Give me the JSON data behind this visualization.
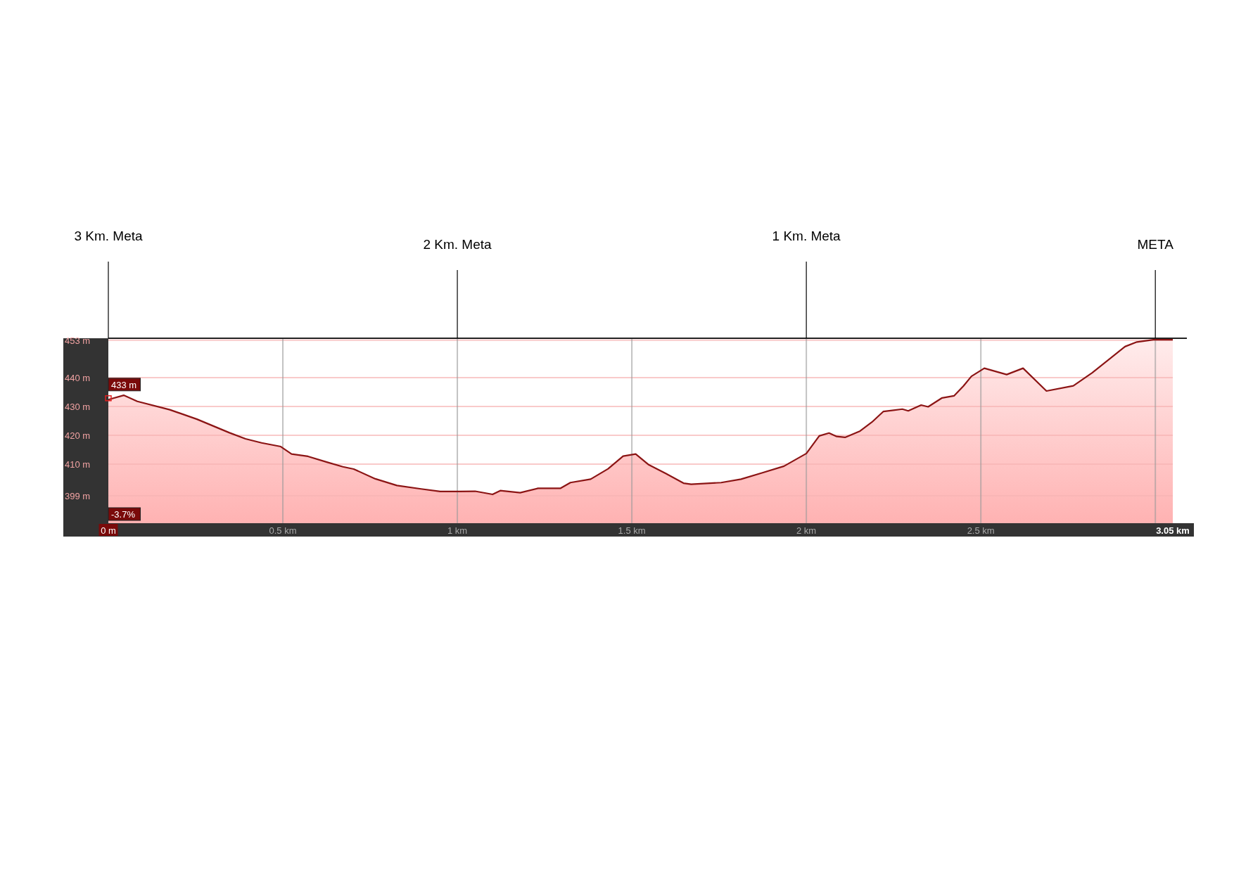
{
  "chart_data": {
    "type": "area",
    "x": [
      0,
      0.044,
      0.083,
      0.176,
      0.254,
      0.347,
      0.393,
      0.439,
      0.494,
      0.525,
      0.572,
      0.626,
      0.672,
      0.703,
      0.765,
      0.827,
      0.896,
      0.951,
      1.005,
      1.051,
      1.101,
      1.123,
      1.18,
      1.231,
      1.295,
      1.324,
      1.382,
      1.432,
      1.475,
      1.511,
      1.547,
      1.598,
      1.648,
      1.67,
      1.756,
      1.813,
      1.871,
      1.936,
      2.0,
      2.037,
      2.065,
      2.087,
      2.111,
      2.154,
      2.188,
      2.221,
      2.275,
      2.292,
      2.329,
      2.349,
      2.389,
      2.423,
      2.45,
      2.473,
      2.51,
      2.574,
      2.621,
      2.688,
      2.765,
      2.819,
      2.913,
      2.947,
      2.994,
      3.05
    ],
    "series": [
      {
        "color": "#8b1414",
        "values": [
          432.4,
          433.9,
          431.8,
          428.9,
          425.6,
          420.9,
          418.8,
          417.4,
          416.1,
          413.5,
          412.7,
          410.7,
          409.1,
          408.3,
          404.9,
          402.6,
          401.4,
          400.5,
          400.5,
          400.6,
          399.5,
          400.8,
          400.1,
          401.6,
          401.6,
          403.6,
          404.8,
          408.4,
          412.8,
          413.5,
          409.9,
          406.7,
          403.4,
          403,
          403.6,
          404.8,
          406.9,
          409.3,
          413.7,
          419.8,
          420.8,
          419.6,
          419.3,
          421.5,
          424.6,
          428.3,
          429.1,
          428.5,
          430.5,
          429.9,
          433,
          433.7,
          437.1,
          440.5,
          443.3,
          441.1,
          443.3,
          435.4,
          437.2,
          441.7,
          450.8,
          452.4,
          453.2,
          453.2
        ]
      }
    ],
    "xlim": [
      0,
      3.05
    ],
    "xticks": [
      {
        "value": 0,
        "label": "0 m"
      },
      {
        "value": 0.5,
        "label": "0.5 km"
      },
      {
        "value": 1,
        "label": "1 km"
      },
      {
        "value": 1.5,
        "label": "1.5 km"
      },
      {
        "value": 2,
        "label": "2 km"
      },
      {
        "value": 2.5,
        "label": "2.5 km"
      },
      {
        "value": 3,
        "label": null
      },
      {
        "value": 3.05,
        "label": "3.05 km"
      }
    ],
    "ylim": [
      389.5,
      453.7
    ],
    "yticks": [
      {
        "value": 399,
        "label": "399 m"
      },
      {
        "value": 410,
        "label": "410 m"
      },
      {
        "value": 420,
        "label": "420 m"
      },
      {
        "value": 430,
        "label": "430 m"
      },
      {
        "value": 440,
        "label": "440 m"
      },
      {
        "value": 453,
        "label": "453 m"
      }
    ],
    "grid": true,
    "annotations": [
      "3 Km. Meta",
      "2 Km. Meta",
      "1 Km. Meta",
      "META",
      {
        "text": "433 m",
        "x": 0,
        "y": 433
      },
      "-3.7%"
    ]
  }
}
